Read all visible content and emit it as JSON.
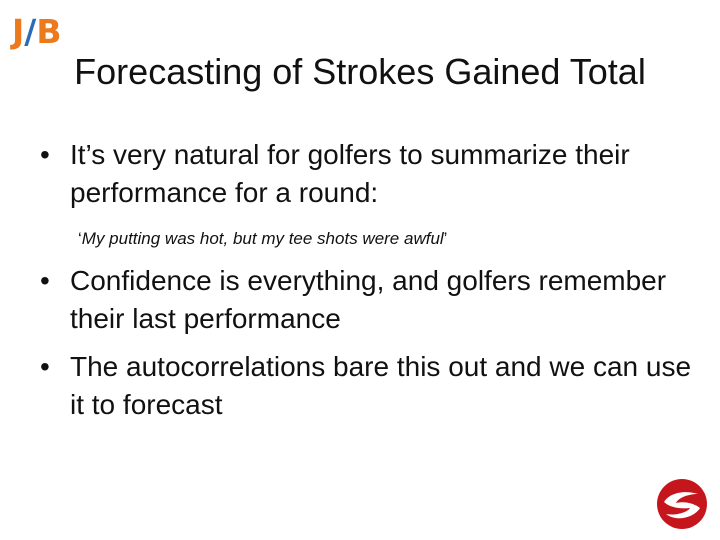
{
  "logo": {
    "j": "J",
    "slash": "/",
    "b": "B"
  },
  "title": "Forecasting of Strokes Gained Total",
  "bullets": [
    {
      "text": "It’s very natural for golfers to summarize their performance for a round:"
    },
    {
      "text": "Confidence is everything, and golfers remember their last performance"
    },
    {
      "text": "The autocorrelations bare this out and we can use it to forecast"
    }
  ],
  "quote": {
    "open": "‘",
    "text": "My putting was hot, but my tee shots were awful",
    "close": "’"
  },
  "icons": {
    "bullet": "•",
    "corner_logo": "red-swoosh-logo-icon"
  },
  "colors": {
    "logo_orange": "#ec7a1c",
    "logo_blue": "#2a6db5",
    "corner_red": "#c4161c"
  }
}
